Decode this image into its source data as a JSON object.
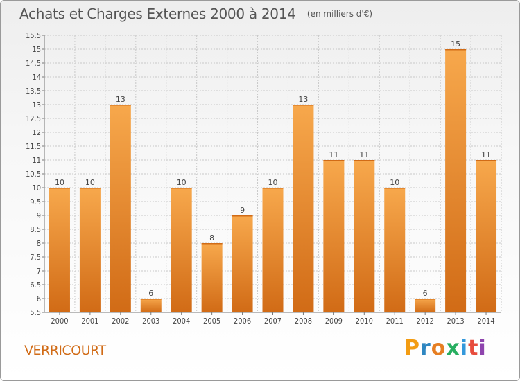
{
  "header": {
    "title": "Achats et Charges Externes 2000 à 2014",
    "unit": "(en milliers d'€)"
  },
  "footer": {
    "commune": "VERRICOURT",
    "logo_letters": [
      "P",
      "r",
      "o",
      "x",
      "i",
      "t",
      "i"
    ],
    "logo_colors": [
      "#f39c12",
      "#2e86c1",
      "#e67e22",
      "#27ae60",
      "#3498db",
      "#e74c3c",
      "#8e44ad"
    ]
  },
  "colors": {
    "bar_light": "#f7a84c",
    "bar_dark": "#d16b16",
    "grid": "#c8c8c8",
    "axis": "#777777"
  },
  "chart_data": {
    "type": "bar",
    "title": "Achats et Charges Externes 2000 à 2014",
    "xlabel": "",
    "ylabel": "",
    "categories": [
      "2000",
      "2001",
      "2002",
      "2003",
      "2004",
      "2005",
      "2006",
      "2007",
      "2008",
      "2009",
      "2010",
      "2011",
      "2012",
      "2013",
      "2014"
    ],
    "values": [
      10,
      10,
      13,
      6,
      10,
      8,
      9,
      10,
      13,
      11,
      11,
      10,
      6,
      15,
      11
    ],
    "ylim": [
      5.5,
      15.5
    ],
    "yticks": [
      "5.5",
      "6",
      "6.5",
      "7",
      "7.5",
      "8",
      "8.5",
      "9",
      "9.5",
      "10",
      "10.5",
      "11",
      "11.5",
      "12",
      "12.5",
      "13",
      "13.5",
      "14",
      "14.5",
      "15",
      "15.5"
    ],
    "grid": true,
    "legend": "none"
  }
}
